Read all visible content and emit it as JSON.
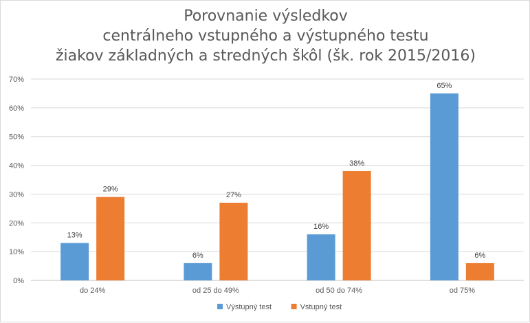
{
  "chart_data": {
    "type": "bar",
    "title_lines": [
      "Porovnanie výsledkov",
      "centrálneho vstupného a výstupného testu",
      "žiakov základných a stredných škôl (šk. rok 2015/2016)"
    ],
    "categories": [
      "do 24%",
      "od 25 do 49%",
      "od 50 do 74%",
      "od 75%"
    ],
    "series": [
      {
        "name": "Výstupný test",
        "color": "#5b9bd5",
        "values": [
          13,
          6,
          16,
          65
        ],
        "labels": [
          "13%",
          "6%",
          "16%",
          "65%"
        ]
      },
      {
        "name": "Vstupný test",
        "color": "#ed7d31",
        "values": [
          29,
          27,
          38,
          6
        ],
        "labels": [
          "29%",
          "27%",
          "38%",
          "6%"
        ]
      }
    ],
    "ylim": [
      0,
      70
    ],
    "yticks": [
      0,
      10,
      20,
      30,
      40,
      50,
      60,
      70
    ],
    "ytick_labels": [
      "0%",
      "10%",
      "20%",
      "30%",
      "40%",
      "50%",
      "60%",
      "70%"
    ],
    "grid": true,
    "legend_position": "bottom"
  }
}
